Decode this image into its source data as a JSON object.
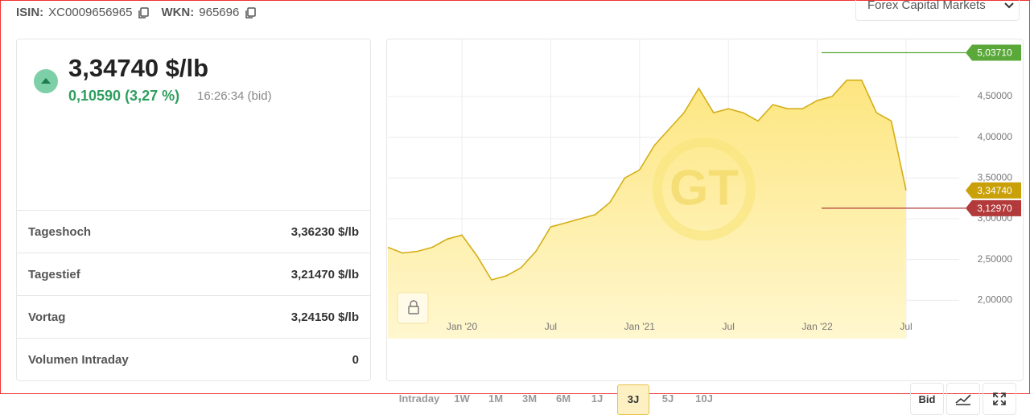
{
  "header": {
    "isin_label": "ISIN:",
    "isin": "XC0009656965",
    "wkn_label": "WKN:",
    "wkn": "965696",
    "exchange": "Forex Capital Markets"
  },
  "quote": {
    "price": "3,34740 $/lb",
    "change": "0,10590 (3,27 %)",
    "time": "16:26:34 (bid)"
  },
  "stats": {
    "rows": [
      [
        "Tageshoch",
        "3,36230 $/lb"
      ],
      [
        "Tagestief",
        "3,21470 $/lb"
      ],
      [
        "Vortag",
        "3,24150 $/lb"
      ],
      [
        "Volumen Intraday",
        "0"
      ]
    ]
  },
  "chart_data": {
    "type": "area",
    "color": "#d4ae16",
    "x": [
      "2019-08",
      "2019-09",
      "2019-10",
      "2019-11",
      "2019-12",
      "2020-01",
      "2020-02",
      "2020-03",
      "2020-04",
      "2020-05",
      "2020-06",
      "2020-07",
      "2020-08",
      "2020-09",
      "2020-10",
      "2020-11",
      "2020-12",
      "2021-01",
      "2021-02",
      "2021-03",
      "2021-04",
      "2021-05",
      "2021-06",
      "2021-07",
      "2021-08",
      "2021-09",
      "2021-10",
      "2021-11",
      "2021-12",
      "2022-01",
      "2022-02",
      "2022-03",
      "2022-04",
      "2022-05",
      "2022-06",
      "2022-07"
    ],
    "values": [
      2.65,
      2.58,
      2.6,
      2.65,
      2.75,
      2.8,
      2.55,
      2.25,
      2.3,
      2.4,
      2.6,
      2.9,
      2.95,
      3.0,
      3.05,
      3.2,
      3.5,
      3.6,
      3.9,
      4.1,
      4.3,
      4.6,
      4.3,
      4.35,
      4.3,
      4.2,
      4.4,
      4.35,
      4.35,
      4.45,
      4.5,
      4.7,
      4.7,
      4.3,
      4.2,
      3.3474
    ],
    "xlim": [
      "2019-08",
      "2022-07"
    ],
    "xticks": [
      {
        "value": "2020-01",
        "label": "Jan '20"
      },
      {
        "value": "2020-07",
        "label": "Jul"
      },
      {
        "value": "2021-01",
        "label": "Jan '21"
      },
      {
        "value": "2021-07",
        "label": "Jul"
      },
      {
        "value": "2022-01",
        "label": "Jan '22"
      },
      {
        "value": "2022-07",
        "label": "Jul"
      }
    ],
    "ylim": [
      1.53,
      5.2
    ],
    "yticks": [
      {
        "value": 2,
        "label": "2,00000"
      },
      {
        "value": 2.5,
        "label": "2,50000"
      },
      {
        "value": 3,
        "label": "3,00000"
      },
      {
        "value": 3.5,
        "label": "3,50000"
      },
      {
        "value": 4,
        "label": "4,00000"
      },
      {
        "value": 4.5,
        "label": "4,50000"
      }
    ],
    "grid": true,
    "markers": [
      {
        "value": 5.0371,
        "label": "5,03710",
        "color": "#5aa83a",
        "line": true
      },
      {
        "value": 3.3474,
        "label": "3,34740",
        "color": "#c9a008",
        "line": false
      },
      {
        "value": 3.1297,
        "label": "3,12970",
        "color": "#b23a3a",
        "line": true
      }
    ]
  },
  "ranges": [
    "Intraday",
    "1W",
    "1M",
    "3M",
    "6M",
    "1J",
    "3J",
    "5J",
    "10J"
  ],
  "active_range": 6,
  "controls": {
    "bid": "Bid"
  }
}
